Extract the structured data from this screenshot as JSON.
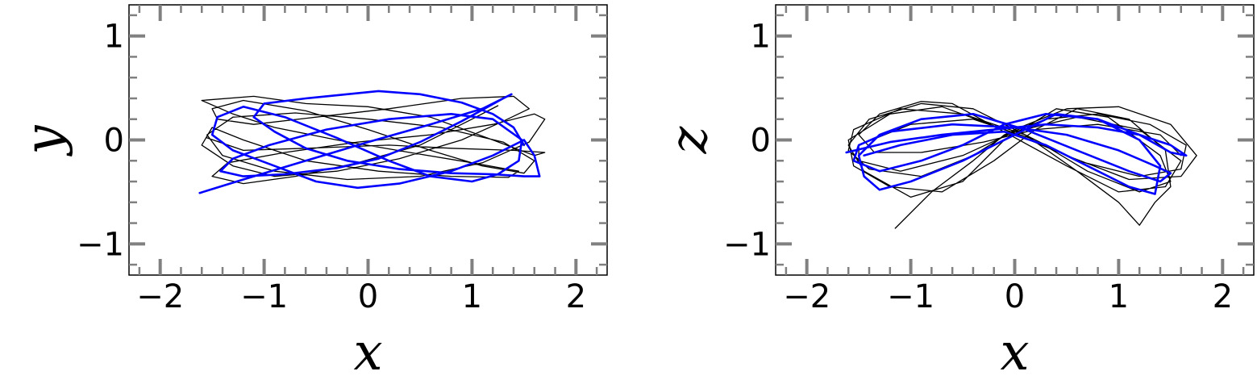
{
  "chart_data": [
    {
      "type": "line",
      "title": "",
      "xlabel": "x",
      "ylabel": "y",
      "xlim": [
        -2.3,
        2.3
      ],
      "ylim": [
        -1.3,
        1.3
      ],
      "xticks": [
        -2,
        -1,
        0,
        1,
        2
      ],
      "yticks": [
        -1,
        0,
        1
      ],
      "xtick_labels": [
        "−2",
        "−1",
        "0",
        "1",
        "2"
      ],
      "ytick_labels": [
        "−1",
        "0",
        "1"
      ],
      "grid": false,
      "series": [
        {
          "color": "#000000",
          "linewidth": "thin",
          "points": [
            [
              -1.55,
              0.02
            ],
            [
              -1.2,
              -0.1
            ],
            [
              -0.6,
              -0.08
            ],
            [
              0.2,
              -0.05
            ],
            [
              0.8,
              -0.08
            ],
            [
              1.4,
              -0.1
            ],
            [
              1.7,
              -0.12
            ],
            [
              1.6,
              -0.15
            ],
            [
              1.2,
              0.0
            ],
            [
              0.6,
              0.22
            ],
            [
              0.0,
              0.32
            ],
            [
              -0.6,
              0.35
            ],
            [
              -1.1,
              0.42
            ],
            [
              -1.6,
              0.38
            ],
            [
              -1.3,
              0.25
            ],
            [
              -0.9,
              0.12
            ],
            [
              -0.3,
              0.0
            ],
            [
              0.4,
              -0.12
            ],
            [
              1.0,
              -0.22
            ],
            [
              1.45,
              -0.3
            ],
            [
              1.35,
              -0.36
            ],
            [
              0.8,
              -0.35
            ],
            [
              0.1,
              -0.3
            ],
            [
              -0.6,
              -0.2
            ],
            [
              -1.2,
              0.0
            ],
            [
              -1.5,
              0.12
            ],
            [
              -1.6,
              -0.05
            ],
            [
              -1.3,
              -0.25
            ],
            [
              -0.9,
              -0.35
            ],
            [
              -0.3,
              -0.3
            ],
            [
              0.3,
              -0.18
            ],
            [
              0.9,
              0.0
            ],
            [
              1.3,
              0.18
            ],
            [
              1.55,
              0.3
            ],
            [
              1.4,
              0.42
            ],
            [
              0.9,
              0.4
            ],
            [
              0.2,
              0.3
            ],
            [
              -0.5,
              0.22
            ],
            [
              -1.1,
              0.15
            ],
            [
              -1.45,
              0.2
            ],
            [
              -1.5,
              0.3
            ],
            [
              -1.2,
              0.38
            ],
            [
              -0.6,
              0.28
            ],
            [
              0.0,
              0.1
            ],
            [
              0.6,
              -0.1
            ],
            [
              1.1,
              -0.25
            ],
            [
              1.5,
              -0.32
            ],
            [
              1.6,
              -0.2
            ],
            [
              1.3,
              -0.02
            ],
            [
              0.7,
              0.12
            ],
            [
              0.0,
              0.2
            ],
            [
              -0.7,
              0.26
            ],
            [
              -1.3,
              0.22
            ],
            [
              -1.55,
              0.05
            ],
            [
              -1.4,
              -0.15
            ],
            [
              -0.9,
              -0.3
            ],
            [
              -0.2,
              -0.38
            ],
            [
              0.5,
              -0.35
            ],
            [
              1.1,
              -0.22
            ],
            [
              1.55,
              -0.02
            ],
            [
              1.7,
              0.2
            ],
            [
              1.6,
              0.25
            ],
            [
              1.2,
              0.15
            ],
            [
              0.6,
              0.05
            ],
            [
              -0.1,
              -0.02
            ],
            [
              -0.8,
              -0.12
            ],
            [
              -1.35,
              -0.22
            ],
            [
              -1.5,
              -0.35
            ],
            [
              -1.2,
              -0.42
            ],
            [
              -0.7,
              -0.35
            ],
            [
              -0.1,
              -0.22
            ],
            [
              0.5,
              -0.05
            ],
            [
              1.0,
              0.2
            ],
            [
              1.25,
              0.33
            ]
          ]
        },
        {
          "color": "#0000ff",
          "linewidth": "thick",
          "points": [
            [
              -1.62,
              -0.51
            ],
            [
              -1.2,
              -0.38
            ],
            [
              -0.6,
              -0.2
            ],
            [
              0.0,
              -0.02
            ],
            [
              0.6,
              0.15
            ],
            [
              1.1,
              0.3
            ],
            [
              1.38,
              0.44
            ],
            [
              1.3,
              0.4
            ],
            [
              0.9,
              0.18
            ],
            [
              0.5,
              -0.02
            ],
            [
              0.1,
              -0.18
            ],
            [
              -0.3,
              -0.27
            ],
            [
              -0.8,
              -0.33
            ],
            [
              -1.2,
              -0.35
            ],
            [
              -1.42,
              -0.3
            ],
            [
              -1.3,
              -0.18
            ],
            [
              -0.95,
              -0.05
            ],
            [
              -0.4,
              0.1
            ],
            [
              0.2,
              0.2
            ],
            [
              0.8,
              0.25
            ],
            [
              1.2,
              0.2
            ],
            [
              1.48,
              0.0
            ],
            [
              1.45,
              -0.2
            ],
            [
              1.25,
              -0.33
            ],
            [
              1.0,
              -0.4
            ],
            [
              0.6,
              -0.35
            ],
            [
              0.2,
              -0.2
            ],
            [
              -0.3,
              0.02
            ],
            [
              -0.8,
              0.22
            ],
            [
              -1.2,
              0.32
            ],
            [
              -1.45,
              0.22
            ],
            [
              -1.5,
              0.05
            ],
            [
              -1.3,
              -0.1
            ],
            [
              -0.9,
              -0.25
            ],
            [
              -0.5,
              -0.4
            ],
            [
              -0.1,
              -0.46
            ],
            [
              0.3,
              -0.42
            ],
            [
              0.8,
              -0.3
            ],
            [
              1.2,
              -0.15
            ],
            [
              1.5,
              0.0
            ],
            [
              1.6,
              -0.15
            ],
            [
              1.65,
              -0.35
            ],
            [
              1.5,
              -0.35
            ],
            [
              1.2,
              -0.33
            ],
            [
              0.8,
              -0.32
            ],
            [
              0.3,
              -0.28
            ],
            [
              -0.2,
              -0.2
            ],
            [
              -0.6,
              -0.08
            ],
            [
              -0.9,
              0.08
            ],
            [
              -1.1,
              0.22
            ],
            [
              -1.0,
              0.35
            ],
            [
              -0.6,
              0.4
            ],
            [
              -0.2,
              0.44
            ],
            [
              0.1,
              0.47
            ],
            [
              0.5,
              0.44
            ],
            [
              0.9,
              0.36
            ],
            [
              1.2,
              0.25
            ],
            [
              1.4,
              0.12
            ],
            [
              1.5,
              -0.05
            ]
          ]
        }
      ]
    },
    {
      "type": "line",
      "title": "",
      "xlabel": "x",
      "ylabel": "z",
      "xlim": [
        -2.3,
        2.3
      ],
      "ylim": [
        -1.3,
        1.3
      ],
      "xticks": [
        -2,
        -1,
        0,
        1,
        2
      ],
      "yticks": [
        -1,
        0,
        1
      ],
      "xtick_labels": [
        "−2",
        "−1",
        "0",
        "1",
        "2"
      ],
      "ytick_labels": [
        "−1",
        "0",
        "1"
      ],
      "grid": false,
      "series": [
        {
          "color": "#000000",
          "linewidth": "thin",
          "points": [
            [
              -1.15,
              -0.85
            ],
            [
              -0.8,
              -0.5
            ],
            [
              -0.4,
              -0.2
            ],
            [
              -0.1,
              0.05
            ],
            [
              0.3,
              0.2
            ],
            [
              0.8,
              0.25
            ],
            [
              1.3,
              0.15
            ],
            [
              1.65,
              -0.05
            ],
            [
              1.6,
              -0.28
            ],
            [
              1.2,
              -0.35
            ],
            [
              0.6,
              -0.2
            ],
            [
              0.1,
              0.05
            ],
            [
              -0.5,
              0.25
            ],
            [
              -1.1,
              0.3
            ],
            [
              -1.55,
              0.1
            ],
            [
              -1.6,
              -0.1
            ],
            [
              -1.4,
              -0.28
            ],
            [
              -0.9,
              -0.35
            ],
            [
              -0.4,
              -0.15
            ],
            [
              0.0,
              0.1
            ],
            [
              0.5,
              0.3
            ],
            [
              1.0,
              0.32
            ],
            [
              1.5,
              0.15
            ],
            [
              1.75,
              -0.15
            ],
            [
              1.6,
              -0.35
            ],
            [
              1.1,
              -0.38
            ],
            [
              0.5,
              -0.15
            ],
            [
              -0.1,
              0.1
            ],
            [
              -0.7,
              0.32
            ],
            [
              -1.2,
              0.25
            ],
            [
              -1.6,
              0.0
            ],
            [
              -1.55,
              -0.25
            ],
            [
              -1.2,
              -0.45
            ],
            [
              -0.7,
              -0.5
            ],
            [
              -0.2,
              -0.2
            ],
            [
              0.2,
              0.1
            ],
            [
              0.6,
              0.3
            ],
            [
              1.1,
              0.2
            ],
            [
              1.45,
              -0.1
            ],
            [
              1.5,
              -0.45
            ],
            [
              1.35,
              -0.6
            ],
            [
              1.2,
              -0.82
            ],
            [
              1.0,
              -0.6
            ],
            [
              0.6,
              -0.3
            ],
            [
              0.1,
              0.05
            ],
            [
              -0.4,
              0.3
            ],
            [
              -0.9,
              0.35
            ],
            [
              -1.4,
              0.2
            ],
            [
              -1.6,
              -0.05
            ],
            [
              -1.45,
              -0.3
            ],
            [
              -1.0,
              -0.55
            ],
            [
              -0.5,
              -0.4
            ],
            [
              -0.1,
              0.0
            ],
            [
              0.4,
              0.3
            ],
            [
              0.9,
              0.22
            ],
            [
              1.4,
              -0.15
            ],
            [
              1.5,
              -0.4
            ],
            [
              1.2,
              -0.5
            ],
            [
              0.7,
              -0.3
            ],
            [
              0.2,
              0.0
            ],
            [
              -0.4,
              0.2
            ],
            [
              -1.0,
              0.15
            ],
            [
              -1.5,
              -0.05
            ],
            [
              -1.5,
              -0.2
            ],
            [
              -1.1,
              -0.3
            ],
            [
              -0.5,
              -0.15
            ],
            [
              0.0,
              0.08
            ],
            [
              0.6,
              0.22
            ],
            [
              1.2,
              0.1
            ],
            [
              1.6,
              -0.2
            ],
            [
              1.45,
              -0.45
            ],
            [
              1.0,
              -0.5
            ],
            [
              0.5,
              -0.25
            ],
            [
              -0.05,
              0.05
            ],
            [
              -0.6,
              0.35
            ],
            [
              -0.9,
              0.37
            ],
            [
              -1.3,
              0.25
            ],
            [
              -1.5,
              0.05
            ],
            [
              -1.35,
              -0.12
            ],
            [
              -0.9,
              -0.12
            ],
            [
              -0.3,
              -0.02
            ],
            [
              0.2,
              0.1
            ],
            [
              0.8,
              0.15
            ],
            [
              1.4,
              0.05
            ],
            [
              1.6,
              -0.15
            ]
          ]
        },
        {
          "color": "#0000ff",
          "linewidth": "thick",
          "points": [
            [
              -1.62,
              -0.12
            ],
            [
              -1.2,
              -0.02
            ],
            [
              -0.7,
              0.05
            ],
            [
              -0.2,
              0.1
            ],
            [
              0.3,
              0.15
            ],
            [
              0.8,
              0.12
            ],
            [
              1.2,
              0.05
            ],
            [
              1.5,
              -0.05
            ],
            [
              1.65,
              -0.15
            ],
            [
              1.5,
              -0.12
            ],
            [
              1.2,
              0.05
            ],
            [
              0.8,
              0.2
            ],
            [
              0.3,
              0.25
            ],
            [
              -0.1,
              0.15
            ],
            [
              -0.5,
              -0.05
            ],
            [
              -0.9,
              -0.2
            ],
            [
              -1.3,
              -0.3
            ],
            [
              -1.55,
              -0.2
            ],
            [
              -1.5,
              -0.05
            ],
            [
              -1.2,
              0.08
            ],
            [
              -0.6,
              0.15
            ],
            [
              0.0,
              0.12
            ],
            [
              0.5,
              0.05
            ],
            [
              1.0,
              -0.1
            ],
            [
              1.35,
              -0.25
            ],
            [
              1.5,
              -0.32
            ],
            [
              1.4,
              -0.4
            ],
            [
              1.1,
              -0.3
            ],
            [
              0.6,
              -0.1
            ],
            [
              0.1,
              0.1
            ],
            [
              -0.4,
              0.25
            ],
            [
              -0.9,
              0.2
            ],
            [
              -1.3,
              0.05
            ],
            [
              -1.5,
              -0.15
            ],
            [
              -1.45,
              -0.35
            ],
            [
              -1.3,
              -0.48
            ],
            [
              -1.0,
              -0.4
            ],
            [
              -0.5,
              -0.2
            ],
            [
              0.0,
              0.05
            ],
            [
              0.4,
              0.25
            ],
            [
              0.8,
              0.2
            ],
            [
              1.2,
              0.0
            ],
            [
              1.4,
              -0.25
            ],
            [
              1.35,
              -0.52
            ],
            [
              1.1,
              -0.45
            ],
            [
              0.7,
              -0.25
            ],
            [
              0.3,
              -0.05
            ],
            [
              -0.1,
              0.08
            ],
            [
              -0.6,
              0.05
            ],
            [
              -1.1,
              -0.05
            ],
            [
              -1.45,
              -0.15
            ]
          ]
        }
      ]
    }
  ]
}
